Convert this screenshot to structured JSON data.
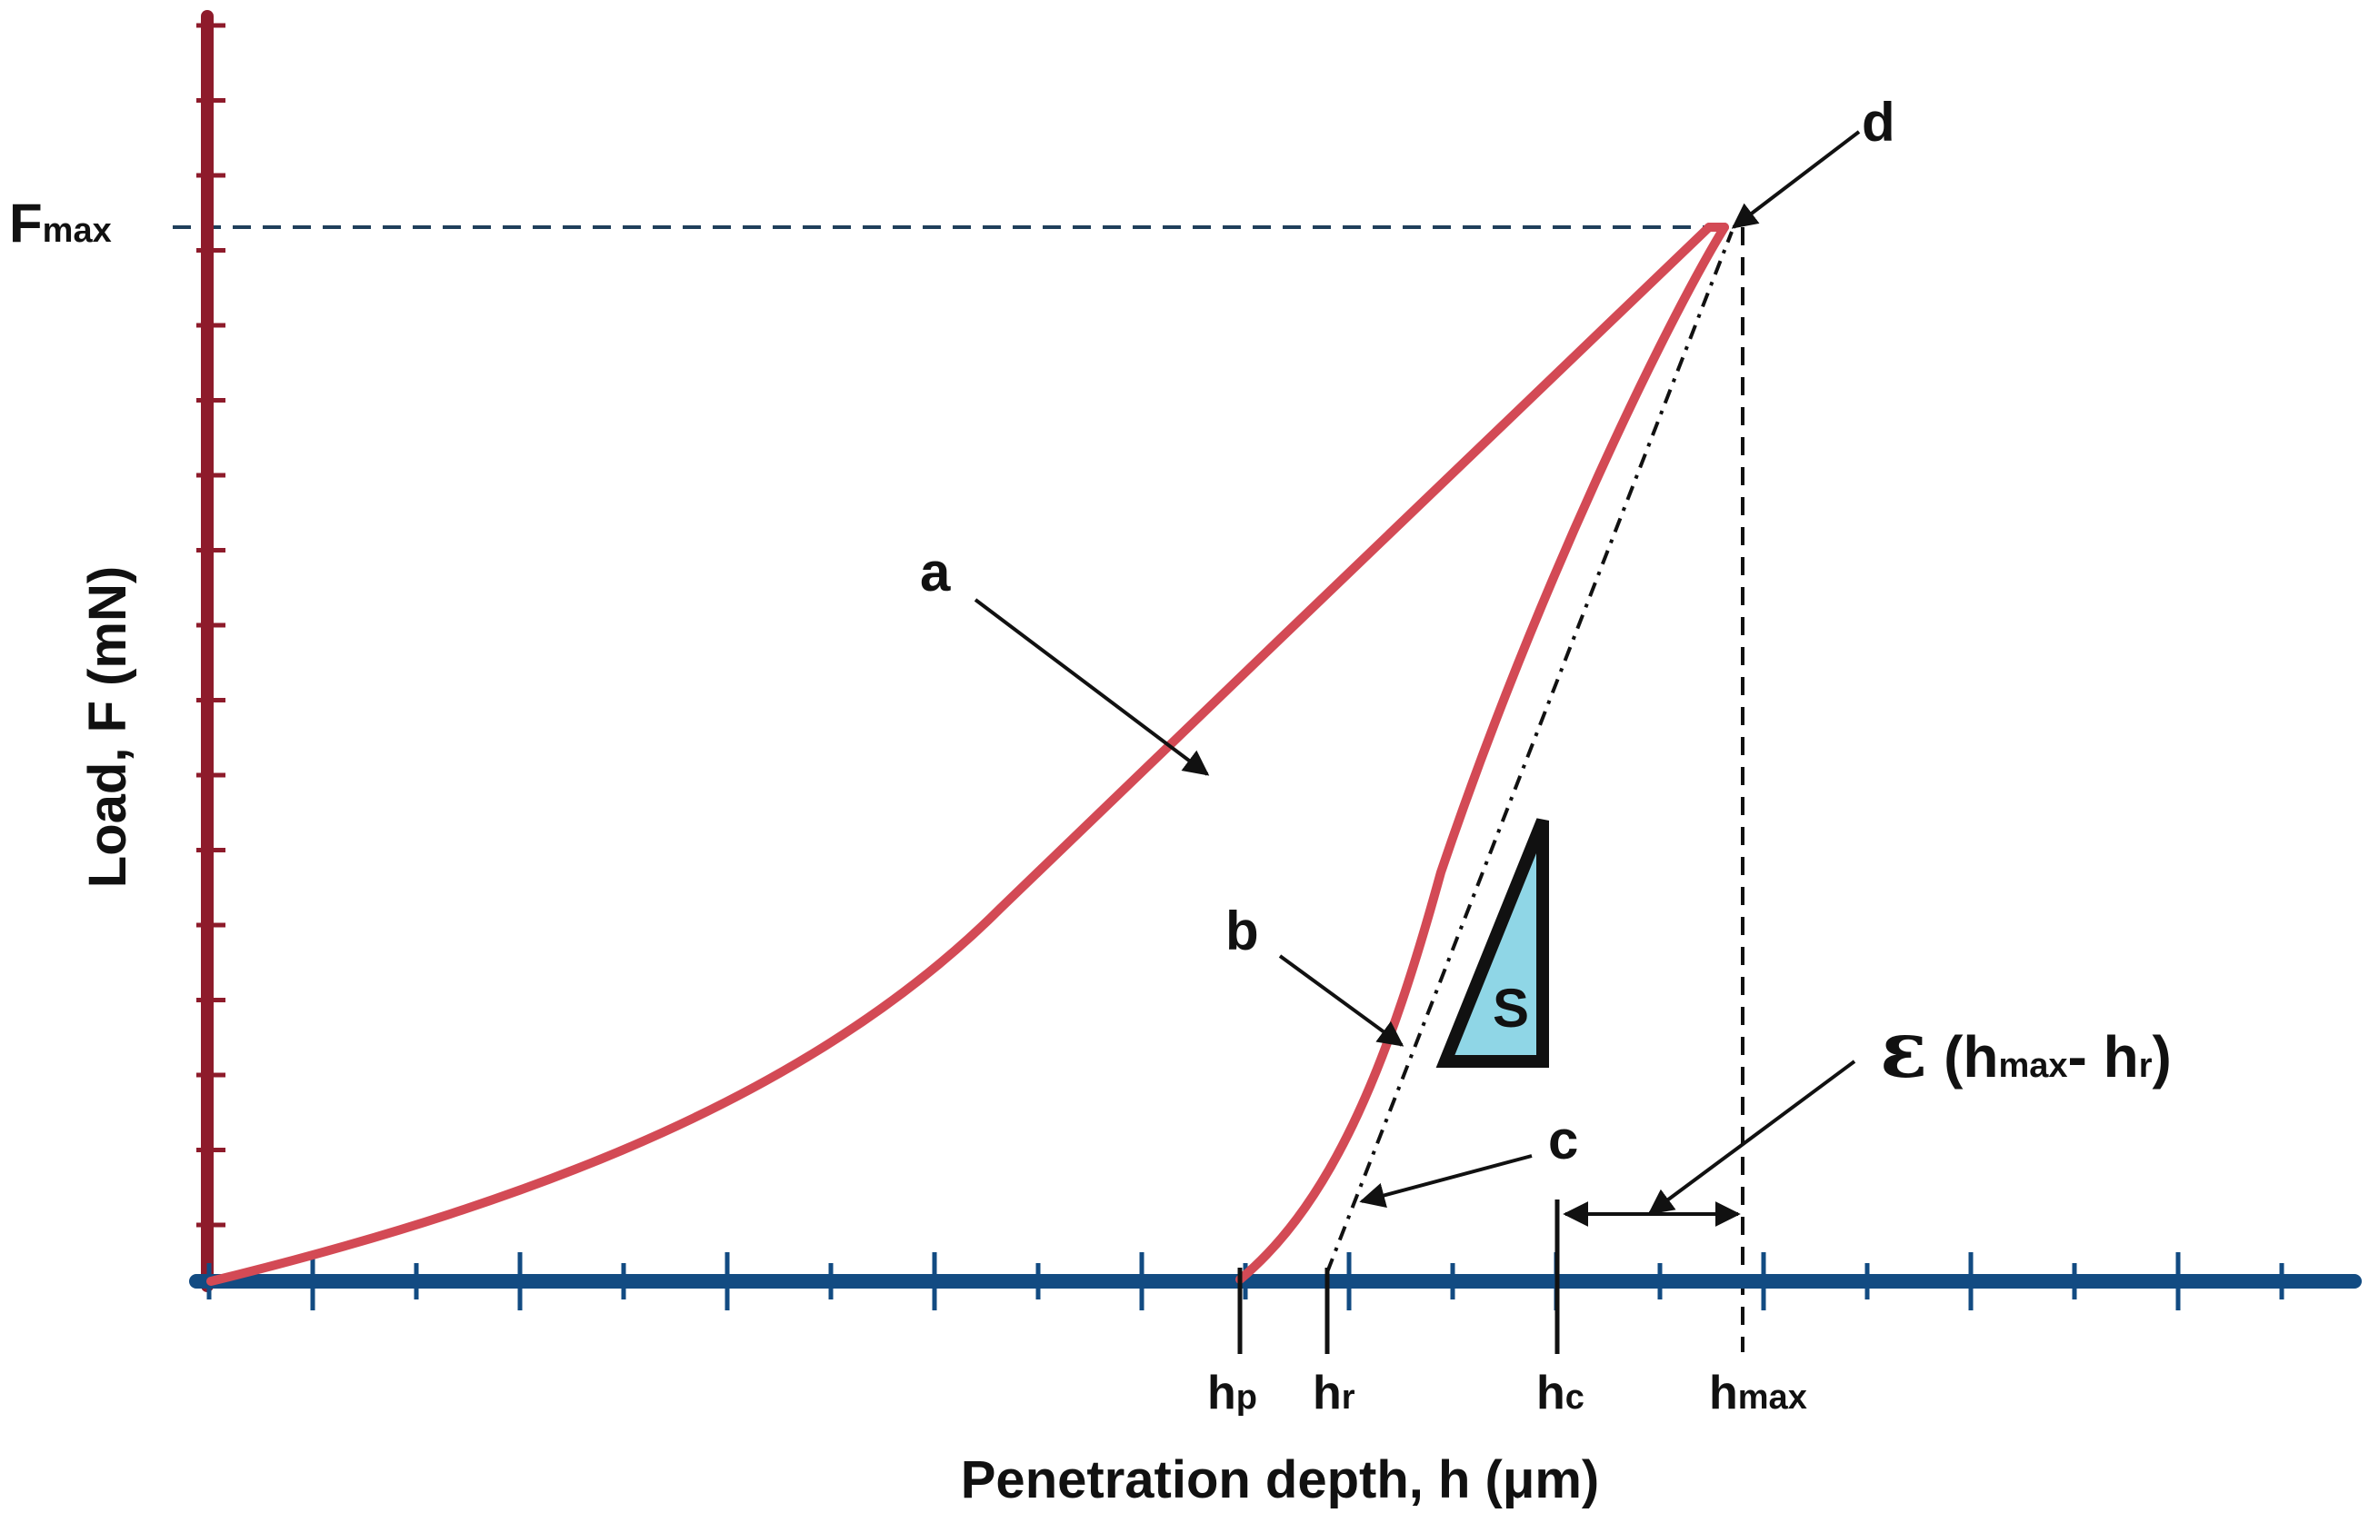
{
  "figure": {
    "colors": {
      "y_axis": "#8e1b2b",
      "x_axis": "#124b82",
      "curve": "#d34a55",
      "triangle_fill": "#8fd6e6",
      "guides": "#1f3f5b",
      "annotation": "#111111"
    },
    "y_axis_title": "Load, F (mN)",
    "x_axis_title": "Penetration depth, h (μm)",
    "fmax": {
      "main": "F",
      "sub": "max"
    },
    "point_labels": {
      "a": "a",
      "b": "b",
      "c": "c",
      "d": "d",
      "s": "S"
    },
    "depth_labels": {
      "hp": {
        "main": "h",
        "sub": "p"
      },
      "hr": {
        "main": "h",
        "sub": "r"
      },
      "hc": {
        "main": "h",
        "sub": "c"
      },
      "hmax": {
        "main": "h",
        "sub": "max"
      }
    },
    "epsilon": {
      "symbol": "ε",
      "open": " (h",
      "sub1": "max",
      "mid": "- h",
      "sub2": "r",
      "close": ")"
    }
  }
}
